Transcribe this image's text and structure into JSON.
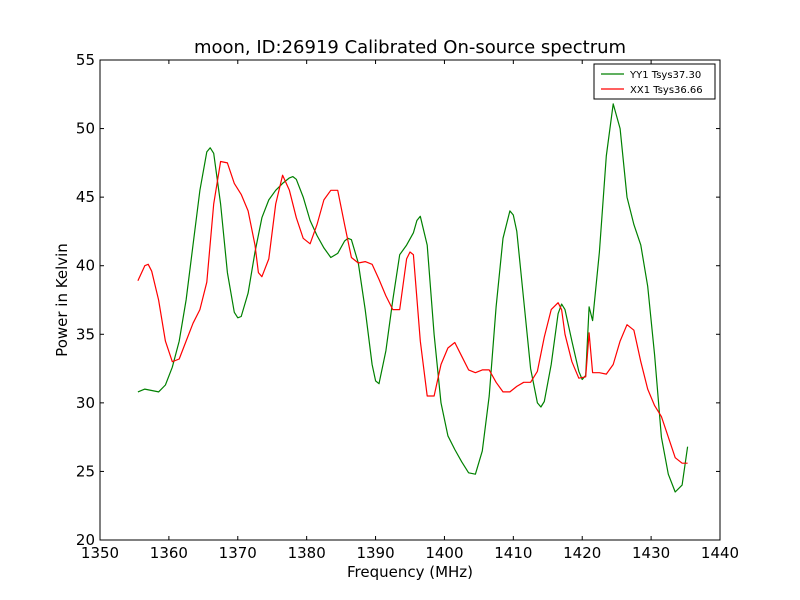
{
  "chart_data": {
    "type": "line",
    "title": "moon, ID:26919 Calibrated On-source spectrum",
    "xlabel": "Frequency (MHz)",
    "ylabel": "Power in Kelvin",
    "xlim": [
      1350,
      1440
    ],
    "ylim": [
      20,
      55
    ],
    "xticks": [
      1350,
      1360,
      1370,
      1380,
      1390,
      1400,
      1410,
      1420,
      1430,
      1440
    ],
    "yticks": [
      20,
      25,
      30,
      35,
      40,
      45,
      50,
      55
    ],
    "grid": false,
    "legend_position": "top-right",
    "series": [
      {
        "name": "YY1 Tsys37.30",
        "color": "#008000",
        "x": [
          1355.5,
          1356.5,
          1357.5,
          1358.5,
          1359.5,
          1360.5,
          1361.5,
          1362.5,
          1363.5,
          1364.5,
          1365.5,
          1366,
          1366.5,
          1367.5,
          1368.5,
          1369.5,
          1370,
          1370.5,
          1371.5,
          1372.5,
          1373.5,
          1374.5,
          1375.5,
          1376.5,
          1377.5,
          1378,
          1378.5,
          1379.5,
          1380.5,
          1381.5,
          1382.5,
          1383.5,
          1384.5,
          1385.5,
          1386,
          1386.5,
          1387.5,
          1388.5,
          1389.5,
          1390,
          1390.5,
          1391.5,
          1392.5,
          1393.5,
          1394.5,
          1395.5,
          1396,
          1396.5,
          1397.5,
          1398.5,
          1399.5,
          1400.5,
          1401.5,
          1402.5,
          1403.5,
          1404.5,
          1405.5,
          1406.5,
          1407.5,
          1408.5,
          1409.5,
          1410,
          1410.5,
          1411.5,
          1412.5,
          1413.5,
          1414,
          1414.5,
          1415.5,
          1416.5,
          1417,
          1417.5,
          1418.5,
          1419.5,
          1420,
          1420.5,
          1421,
          1421.5,
          1422.5,
          1423.5,
          1424.5,
          1425.5,
          1426.5,
          1427.5,
          1428.5,
          1429.5,
          1430.5,
          1431.5,
          1432.5,
          1433.5,
          1434.5,
          1435.3
        ],
        "values": [
          30.8,
          31.0,
          30.9,
          30.8,
          31.3,
          32.6,
          34.5,
          37.5,
          41.5,
          45.5,
          48.3,
          48.6,
          48.2,
          44.5,
          39.5,
          36.6,
          36.2,
          36.3,
          38.0,
          41.0,
          43.5,
          44.8,
          45.5,
          46.0,
          46.4,
          46.5,
          46.3,
          45.0,
          43.3,
          42.2,
          41.3,
          40.6,
          40.9,
          41.8,
          42.0,
          41.9,
          40.2,
          36.8,
          32.8,
          31.6,
          31.4,
          33.8,
          37.5,
          40.8,
          41.5,
          42.4,
          43.3,
          43.6,
          41.5,
          35.0,
          30.0,
          27.6,
          26.6,
          25.7,
          24.9,
          24.8,
          26.5,
          30.5,
          37.0,
          42.0,
          44.0,
          43.7,
          42.5,
          37.5,
          32.5,
          30.0,
          29.7,
          30.1,
          32.8,
          36.5,
          37.2,
          36.8,
          34.5,
          32.3,
          31.7,
          32.0,
          37.0,
          36.0,
          41.0,
          48.0,
          51.8,
          50.0,
          45.0,
          43.0,
          41.5,
          38.5,
          33.5,
          27.5,
          24.8,
          23.5,
          24.0,
          26.8
        ]
      },
      {
        "name": "XX1 Tsys36.66",
        "color": "#ff0000",
        "x": [
          1355.5,
          1356.5,
          1357,
          1357.5,
          1358.5,
          1359.5,
          1360.5,
          1361.5,
          1362.5,
          1363.5,
          1364.5,
          1365.5,
          1366.5,
          1367.5,
          1368.5,
          1369.5,
          1370.5,
          1371.5,
          1372.5,
          1373,
          1373.5,
          1374.5,
          1375.5,
          1376.5,
          1377.5,
          1378.5,
          1379.5,
          1380.5,
          1381.5,
          1382.5,
          1383.5,
          1384.5,
          1385.5,
          1386.5,
          1387.5,
          1388.5,
          1389.5,
          1390.5,
          1391.5,
          1392.5,
          1393.5,
          1394.5,
          1395,
          1395.5,
          1396.5,
          1397.5,
          1398.5,
          1399.5,
          1400.5,
          1401.5,
          1402.5,
          1403.5,
          1404.5,
          1405.5,
          1406.5,
          1407.5,
          1408.5,
          1409.5,
          1410.5,
          1411.5,
          1412.5,
          1413.5,
          1414.5,
          1415.5,
          1416.5,
          1417,
          1417.5,
          1418.5,
          1419.5,
          1420.5,
          1421,
          1421.5,
          1422.5,
          1423.5,
          1424.5,
          1425.5,
          1426.5,
          1427.5,
          1428.5,
          1429.5,
          1430.5,
          1431.5,
          1432.5,
          1433.5,
          1434.5,
          1435.3
        ],
        "values": [
          38.9,
          40.0,
          40.1,
          39.6,
          37.5,
          34.5,
          33.0,
          33.2,
          34.5,
          35.8,
          36.8,
          38.8,
          44.5,
          47.6,
          47.5,
          46.0,
          45.2,
          44.0,
          41.5,
          39.5,
          39.2,
          40.5,
          44.5,
          46.6,
          45.5,
          43.5,
          42.0,
          41.6,
          43.0,
          44.8,
          45.5,
          45.5,
          43.0,
          40.6,
          40.2,
          40.3,
          40.1,
          39.0,
          37.8,
          36.8,
          36.8,
          40.5,
          41.0,
          40.8,
          34.5,
          30.5,
          30.5,
          32.8,
          34.0,
          34.4,
          33.4,
          32.4,
          32.2,
          32.4,
          32.4,
          31.5,
          30.8,
          30.8,
          31.2,
          31.5,
          31.5,
          32.3,
          34.8,
          36.8,
          37.3,
          36.8,
          35.0,
          33.0,
          31.8,
          31.9,
          35.1,
          32.2,
          32.2,
          32.1,
          32.8,
          34.5,
          35.7,
          35.3,
          33.0,
          31.0,
          29.8,
          29.0,
          27.5,
          26.0,
          25.6,
          25.6
        ]
      }
    ]
  }
}
